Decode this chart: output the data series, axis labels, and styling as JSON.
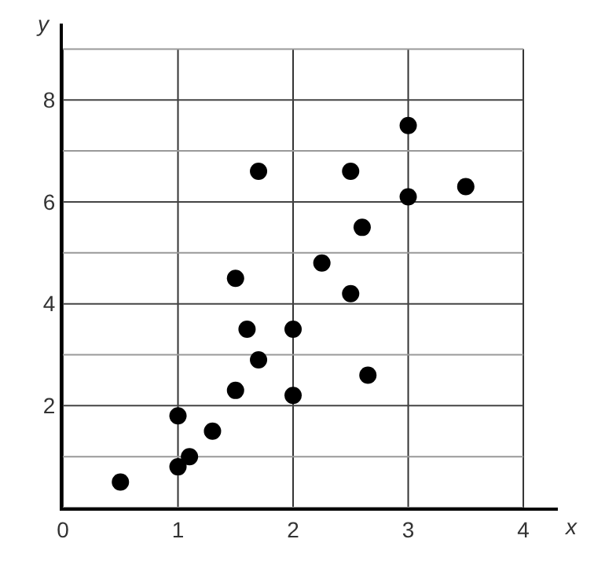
{
  "chart_data": {
    "type": "scatter",
    "xlabel": "x",
    "ylabel": "y",
    "x": [
      0.5,
      1,
      1,
      1.1,
      1.3,
      1.5,
      1.6,
      1.7,
      1.5,
      2,
      2,
      1.7,
      2.25,
      2.5,
      2.65,
      2.6,
      2.5,
      3,
      3,
      3.5
    ],
    "values": [
      0.5,
      0.8,
      1.8,
      1.0,
      1.5,
      2.3,
      3.5,
      2.9,
      4.5,
      3.5,
      2.2,
      6.6,
      4.8,
      4.2,
      2.6,
      5.5,
      6.6,
      7.5,
      6.1,
      6.3
    ],
    "color": "#000000",
    "marker": "circle",
    "xlim": [
      0,
      4.3
    ],
    "ylim": [
      0,
      9.5
    ],
    "xticks": [
      0,
      1,
      2,
      3,
      4
    ],
    "yticks": [
      {
        "value": 0,
        "label": null
      },
      {
        "value": 1,
        "label": null
      },
      2,
      {
        "value": 3,
        "label": null
      },
      4,
      {
        "value": 5,
        "label": null
      },
      6,
      {
        "value": 7,
        "label": null
      },
      8,
      {
        "value": 9,
        "label": null
      }
    ],
    "grid": true,
    "legend": false
  }
}
